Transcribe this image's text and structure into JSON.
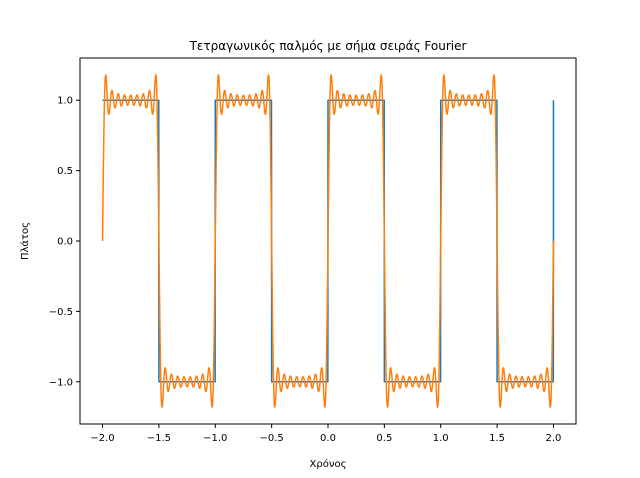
{
  "chart_data": {
    "type": "line",
    "title": "Τετραγωνικός παλμός με σήμα σειράς Fourier",
    "xlabel": "Χρόνος",
    "ylabel": "Πλάτος",
    "xlim": [
      -2.2,
      2.2
    ],
    "ylim": [
      -1.3,
      1.3
    ],
    "grid": false,
    "x_ticks": [
      -2.0,
      -1.5,
      -1.0,
      -0.5,
      0.0,
      0.5,
      1.0,
      1.5,
      2.0
    ],
    "x_tick_labels": [
      "−2.0",
      "−1.5",
      "−1.0",
      "−0.5",
      "0.0",
      "0.5",
      "1.0",
      "1.5",
      "2.0"
    ],
    "y_ticks": [
      -1.0,
      -0.5,
      0.0,
      0.5,
      1.0
    ],
    "y_tick_labels": [
      "−1.0",
      "−0.5",
      "0.0",
      "0.5",
      "1.0"
    ],
    "series": [
      {
        "color": "#1f77b4",
        "kind": "square-wave",
        "x_range": [
          -2.0,
          2.0
        ],
        "period": 1.0,
        "amplitude": 1.0,
        "end_value": 1.0
      },
      {
        "color": "#ff7f0e",
        "kind": "fourier-square-wave",
        "x_range": [
          -2.0,
          2.0
        ],
        "period": 1.0,
        "amplitude": 1.0,
        "odd_harmonics": [
          1,
          3,
          5,
          7,
          9,
          11,
          13,
          15,
          17
        ]
      }
    ]
  }
}
